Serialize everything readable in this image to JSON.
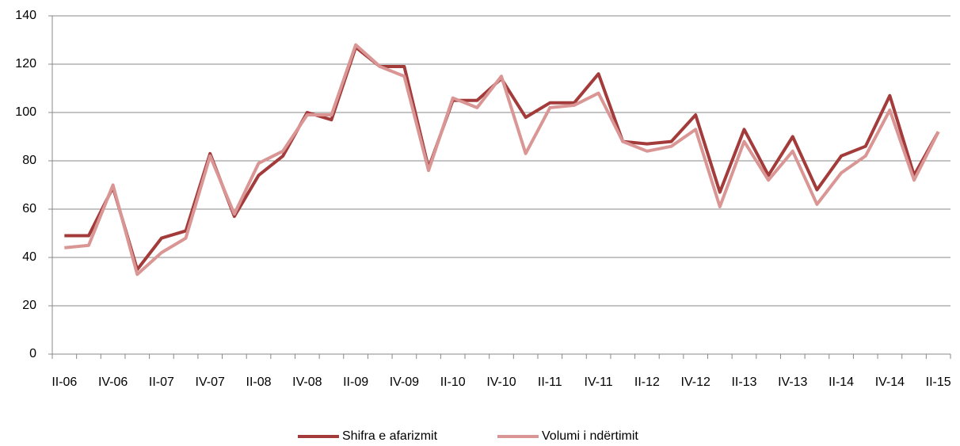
{
  "chart_data": {
    "type": "line",
    "categories": [
      "II-06",
      null,
      "IV-06",
      null,
      "II-07",
      null,
      "IV-07",
      null,
      "II-08",
      null,
      "IV-08",
      null,
      "II-09",
      null,
      "IV-09",
      null,
      "II-10",
      null,
      "IV-10",
      null,
      "II-11",
      null,
      "IV-11",
      null,
      "II-12",
      null,
      "IV-12",
      null,
      "II-13",
      null,
      "IV-13",
      null,
      "II-14",
      null,
      "IV-14",
      null,
      "II-15"
    ],
    "series": [
      {
        "name": "Shifra e afarizmit",
        "color": "#a33b3b",
        "values": [
          49,
          49,
          69,
          35,
          48,
          51,
          83,
          57,
          74,
          82,
          100,
          97,
          127,
          119,
          119,
          77,
          105,
          105,
          114,
          98,
          104,
          104,
          116,
          88,
          87,
          88,
          99,
          67,
          93,
          74,
          90,
          68,
          82,
          86,
          107,
          74,
          92
        ]
      },
      {
        "name": "Volumi i ndërtimit",
        "color": "#d99694",
        "values": [
          44,
          45,
          70,
          33,
          42,
          48,
          82,
          58,
          79,
          84,
          99,
          99,
          128,
          119,
          115,
          76,
          106,
          102,
          115,
          83,
          102,
          103,
          108,
          88,
          84,
          86,
          93,
          61,
          88,
          72,
          84,
          62,
          75,
          82,
          101,
          72,
          92
        ]
      }
    ],
    "ylim": [
      0,
      140
    ],
    "yticks": [
      0,
      20,
      40,
      60,
      80,
      100,
      120,
      140
    ],
    "grid": true,
    "legend": "bottom"
  }
}
